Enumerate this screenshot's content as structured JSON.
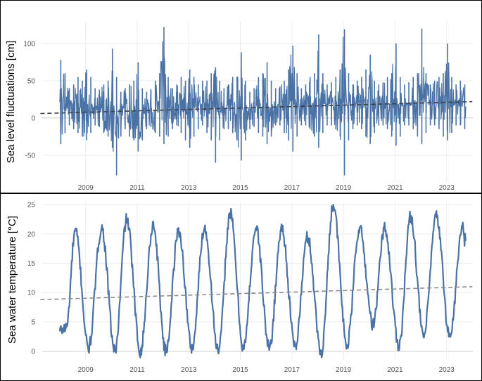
{
  "colors": {
    "series": "#4a72a5",
    "trend_top": "#3c4048",
    "trend_bottom": "#8c8c8c",
    "grid": "#ececec",
    "zero": "#cccccc"
  },
  "chart_data": [
    {
      "type": "line",
      "title": "",
      "xlabel": "",
      "ylabel": "Sea level fluctuations [cm]",
      "xlim": [
        "2008-01-01",
        "2023-09-30"
      ],
      "ylim": [
        -85,
        130
      ],
      "yticks": [
        -50,
        0,
        50,
        100
      ],
      "xticks": [
        "2009",
        "2011",
        "2013",
        "2015",
        "2017",
        "2019",
        "2021",
        "2023"
      ],
      "grid": true,
      "trend": {
        "x": [
          "2007-04-01",
          "2023-12-31"
        ],
        "y": [
          6,
          22
        ]
      },
      "series": [
        {
          "x": [
            "2008-01",
            "2008-03",
            "2008-05",
            "2008-07",
            "2008-09",
            "2008-11",
            "2009-01",
            "2009-03",
            "2009-05",
            "2009-07",
            "2009-09",
            "2009-11",
            "2010-01",
            "2010-03",
            "2010-05",
            "2010-07",
            "2010-09",
            "2010-11",
            "2011-01",
            "2011-03",
            "2011-05",
            "2011-07",
            "2011-09",
            "2011-11",
            "2012-01",
            "2012-03",
            "2012-05",
            "2012-07",
            "2012-09",
            "2012-11",
            "2013-01",
            "2013-03",
            "2013-05",
            "2013-07",
            "2013-09",
            "2013-11",
            "2014-01",
            "2014-03",
            "2014-05",
            "2014-07",
            "2014-09",
            "2014-11",
            "2015-01",
            "2015-03",
            "2015-05",
            "2015-07",
            "2015-09",
            "2015-11",
            "2016-01",
            "2016-03",
            "2016-05",
            "2016-07",
            "2016-09",
            "2016-11",
            "2017-01",
            "2017-03",
            "2017-05",
            "2017-07",
            "2017-09",
            "2017-11",
            "2018-01",
            "2018-03",
            "2018-05",
            "2018-07",
            "2018-09",
            "2018-11",
            "2019-01",
            "2019-03",
            "2019-05",
            "2019-07",
            "2019-09",
            "2019-11",
            "2020-01",
            "2020-03",
            "2020-05",
            "2020-07",
            "2020-09",
            "2020-11",
            "2021-01",
            "2021-03",
            "2021-05",
            "2021-07",
            "2021-09",
            "2021-11",
            "2022-01",
            "2022-03",
            "2022-05",
            "2022-07",
            "2022-09",
            "2022-11",
            "2023-01",
            "2023-03",
            "2023-05",
            "2023-07",
            "2023-09"
          ],
          "high": [
            78,
            60,
            40,
            45,
            55,
            50,
            65,
            55,
            40,
            38,
            45,
            50,
            93,
            55,
            35,
            40,
            45,
            50,
            75,
            40,
            35,
            38,
            50,
            60,
            122,
            55,
            40,
            45,
            55,
            50,
            65,
            55,
            45,
            50,
            50,
            60,
            68,
            50,
            40,
            45,
            55,
            55,
            88,
            50,
            35,
            40,
            55,
            60,
            75,
            50,
            40,
            42,
            50,
            65,
            97,
            60,
            40,
            45,
            55,
            60,
            112,
            60,
            45,
            48,
            55,
            65,
            119,
            60,
            45,
            50,
            55,
            65,
            85,
            50,
            45,
            48,
            55,
            60,
            100,
            55,
            45,
            48,
            55,
            60,
            120,
            60,
            45,
            50,
            55,
            60,
            100,
            55,
            45,
            50,
            45
          ],
          "low": [
            -35,
            -20,
            -10,
            -15,
            -20,
            -25,
            -30,
            -20,
            -10,
            -12,
            -20,
            -25,
            -40,
            -77,
            -25,
            -15,
            -25,
            -30,
            -45,
            -30,
            -15,
            -12,
            -20,
            -25,
            -35,
            -25,
            -15,
            -10,
            -20,
            -30,
            -40,
            -25,
            -15,
            -10,
            -20,
            -30,
            -60,
            -30,
            -15,
            -15,
            -20,
            -30,
            -57,
            -30,
            -15,
            -12,
            -20,
            -25,
            -35,
            -25,
            -10,
            -10,
            -20,
            -30,
            -45,
            -25,
            -10,
            -10,
            -15,
            -25,
            -40,
            -20,
            -10,
            -10,
            -15,
            -25,
            -77,
            -30,
            -15,
            -10,
            -15,
            -25,
            -35,
            -20,
            -10,
            -10,
            -15,
            -25,
            -37,
            -25,
            -10,
            -10,
            -15,
            -25,
            -35,
            -20,
            -10,
            -10,
            -15,
            -25,
            -30,
            -20,
            -10,
            -10,
            -15
          ]
        }
      ]
    },
    {
      "type": "line",
      "title": "",
      "xlabel": "",
      "ylabel": "Sea water temperature [°C]",
      "xlim": [
        "2008-01-01",
        "2023-09-30"
      ],
      "ylim": [
        -1.5,
        25.5
      ],
      "yticks": [
        0,
        5,
        10,
        15,
        20,
        25
      ],
      "xticks": [
        "2009",
        "2011",
        "2013",
        "2015",
        "2017",
        "2019",
        "2021",
        "2023"
      ],
      "grid": true,
      "trend": {
        "x": [
          "2007-04-01",
          "2023-12-31"
        ],
        "y": [
          8.8,
          11
        ]
      },
      "series": [
        {
          "x": [
            "2008-01-01",
            "2008-04-01",
            "2008-08-08",
            "2009-02-10",
            "2009-08-15",
            "2010-02-20",
            "2010-08-05",
            "2011-02-15",
            "2011-08-15",
            "2012-02-10",
            "2012-08-10",
            "2013-02-15",
            "2013-08-10",
            "2014-02-25",
            "2014-08-10",
            "2015-02-15",
            "2015-08-10",
            "2016-02-15",
            "2016-08-10",
            "2017-02-15",
            "2017-08-10",
            "2018-02-20",
            "2018-08-08",
            "2019-02-20",
            "2019-08-15",
            "2020-02-25",
            "2020-08-05",
            "2021-02-25",
            "2021-08-10",
            "2022-02-10",
            "2022-08-08",
            "2023-02-15",
            "2023-08-15",
            "2023-09-15"
          ],
          "values": [
            3.5,
            4,
            20.5,
            0.5,
            21,
            0,
            22.5,
            0,
            21.5,
            0,
            20.5,
            0.5,
            21,
            0,
            23.5,
            0.5,
            21,
            0.5,
            21,
            0.8,
            19.5,
            -0.2,
            25,
            1,
            21,
            4.5,
            21,
            1,
            23,
            2.5,
            23,
            2.5,
            21,
            19
          ]
        }
      ]
    }
  ]
}
